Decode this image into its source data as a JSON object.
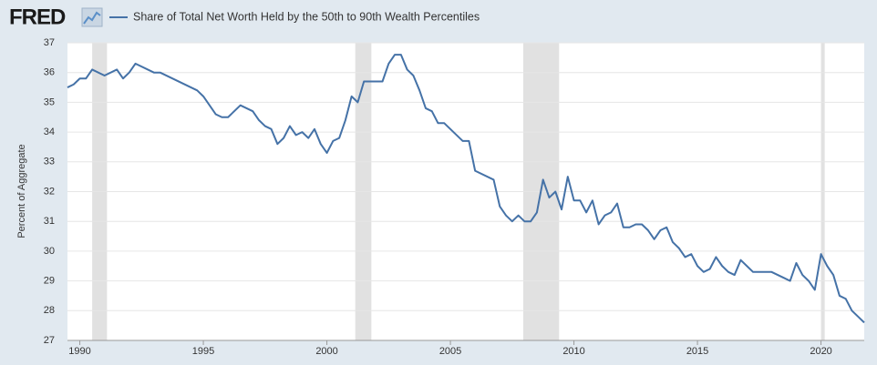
{
  "chart_data": {
    "type": "line",
    "logo": "FRED",
    "y_label": "Percent of Aggregate",
    "xlim": [
      1989.5,
      2021.75
    ],
    "xticks": [
      1990,
      1995,
      2000,
      2005,
      2010,
      2015,
      2020
    ],
    "ylim": [
      27,
      37
    ],
    "yticks": [
      27,
      28,
      29,
      30,
      31,
      32,
      33,
      34,
      35,
      36,
      37
    ],
    "grid": true,
    "shaded_ranges": [
      [
        1990.5,
        1991.1
      ],
      [
        2001.15,
        2001.8
      ],
      [
        2007.95,
        2009.4
      ],
      [
        2020.0,
        2020.15
      ]
    ],
    "shade_color": "#e1e1e1",
    "series": [
      {
        "name": "Share of Total Net Worth Held by the 50th to 90th Wealth Percentiles",
        "color": "#4572a7",
        "x": [
          1989.5,
          1989.75,
          1990.0,
          1990.25,
          1990.5,
          1991.0,
          1991.5,
          1991.75,
          1992.0,
          1992.25,
          1993.0,
          1993.25,
          1994.75,
          1995.0,
          1995.5,
          1995.75,
          1996.0,
          1996.5,
          1997.0,
          1997.25,
          1997.5,
          1997.75,
          1998.0,
          1998.25,
          1998.5,
          1998.75,
          1999.0,
          1999.25,
          1999.5,
          1999.75,
          2000.0,
          2000.25,
          2000.5,
          2000.75,
          2001.0,
          2001.25,
          2001.5,
          2002.25,
          2002.5,
          2002.75,
          2003.0,
          2003.25,
          2003.5,
          2003.75,
          2004.0,
          2004.25,
          2004.5,
          2004.75,
          2005.5,
          2005.75,
          2006.0,
          2006.75,
          2007.0,
          2007.25,
          2007.5,
          2007.75,
          2008.0,
          2008.25,
          2008.5,
          2008.75,
          2009.0,
          2009.25,
          2009.5,
          2009.75,
          2010.0,
          2010.25,
          2010.5,
          2010.75,
          2011.0,
          2011.25,
          2011.5,
          2011.75,
          2012.0,
          2012.25,
          2012.5,
          2012.75,
          2013.0,
          2013.25,
          2013.5,
          2013.75,
          2014.0,
          2014.25,
          2014.5,
          2014.75,
          2015.0,
          2015.25,
          2015.5,
          2015.75,
          2016.0,
          2016.25,
          2016.5,
          2016.75,
          2017.0,
          2017.25,
          2018.0,
          2018.5,
          2018.75,
          2019.0,
          2019.25,
          2019.5,
          2019.75,
          2020.0,
          2020.25,
          2020.5,
          2020.75,
          2021.0,
          2021.25,
          2021.5,
          2021.75
        ],
        "values": [
          35.5,
          35.6,
          35.8,
          35.8,
          36.1,
          35.9,
          36.1,
          35.8,
          36.0,
          36.3,
          36.0,
          36.0,
          35.4,
          35.2,
          34.6,
          34.5,
          34.5,
          34.9,
          34.7,
          34.4,
          34.2,
          34.1,
          33.6,
          33.8,
          34.2,
          33.9,
          34.0,
          33.8,
          34.1,
          33.6,
          33.3,
          33.7,
          33.8,
          34.4,
          35.2,
          35.0,
          35.7,
          35.7,
          36.3,
          36.6,
          36.6,
          36.1,
          35.9,
          35.4,
          34.8,
          34.7,
          34.3,
          34.3,
          33.7,
          33.7,
          32.7,
          32.4,
          31.5,
          31.2,
          31.0,
          31.2,
          31.0,
          31.0,
          31.3,
          32.4,
          31.8,
          32.0,
          31.4,
          32.5,
          31.7,
          31.7,
          31.3,
          31.7,
          30.9,
          31.2,
          31.3,
          31.6,
          30.8,
          30.8,
          30.9,
          30.9,
          30.7,
          30.4,
          30.7,
          30.8,
          30.3,
          30.1,
          29.8,
          29.9,
          29.5,
          29.3,
          29.4,
          29.8,
          29.5,
          29.3,
          29.2,
          29.7,
          29.5,
          29.3,
          29.3,
          29.1,
          29.0,
          29.6,
          29.2,
          29.0,
          28.7,
          29.9,
          29.5,
          29.2,
          28.5,
          28.4,
          28.0,
          27.8,
          27.6
        ]
      }
    ]
  }
}
